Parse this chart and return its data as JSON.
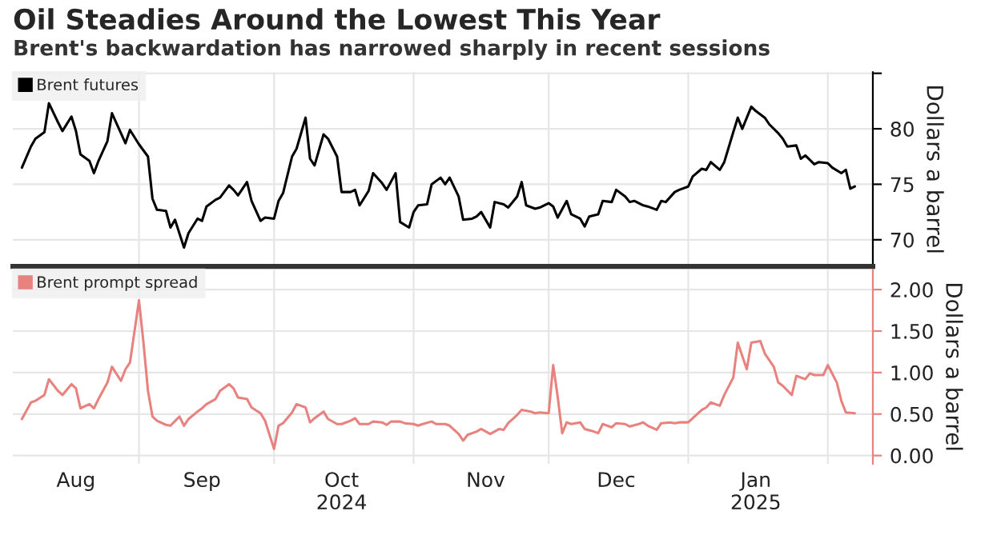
{
  "chart_data": [
    {
      "type": "line",
      "title": "Oil Steadies Around the Lowest This Year",
      "subtitle": "Brent's backwardation has narrowed sharply in recent sessions",
      "ylabel": "Dollars a barrel",
      "legend": "top left",
      "grid": true,
      "tick_labels": "y",
      "xlim": [
        "2024-08-04",
        "2025-02-11"
      ],
      "xticks": [
        {
          "value": "2024-09-01",
          "label": null
        },
        {
          "value": "2024-10-01",
          "label": null
        },
        {
          "value": "2024-11-01",
          "label": null
        },
        {
          "value": "2024-12-01",
          "label": null
        },
        {
          "value": "2025-01-01",
          "label": null
        },
        {
          "value": "2025-02-01",
          "label": null
        }
      ],
      "ylim": [
        67.6,
        85.1
      ],
      "yticks": [
        70,
        75,
        80,
        {
          "value": 85,
          "label": null
        }
      ],
      "series": [
        {
          "name": "Brent futures",
          "color": "#000000",
          "x": [
            "2024-08-06",
            "2024-08-08",
            "2024-08-09",
            "2024-08-11",
            "2024-08-12",
            "2024-08-14",
            "2024-08-15",
            "2024-08-17",
            "2024-08-18",
            "2024-08-19",
            "2024-08-21",
            "2024-08-22",
            "2024-08-23",
            "2024-08-25",
            "2024-08-26",
            "2024-08-28",
            "2024-08-29",
            "2024-08-30",
            "2024-09-01",
            "2024-09-03",
            "2024-09-04",
            "2024-09-05",
            "2024-09-07",
            "2024-09-08",
            "2024-09-09",
            "2024-09-11",
            "2024-09-12",
            "2024-09-14",
            "2024-09-15",
            "2024-09-16",
            "2024-09-18",
            "2024-09-19",
            "2024-09-21",
            "2024-09-22",
            "2024-09-23",
            "2024-09-25",
            "2024-09-26",
            "2024-09-28",
            "2024-09-29",
            "2024-10-01",
            "2024-10-02",
            "2024-10-03",
            "2024-10-05",
            "2024-10-06",
            "2024-10-08",
            "2024-10-09",
            "2024-10-10",
            "2024-10-12",
            "2024-10-13",
            "2024-10-15",
            "2024-10-16",
            "2024-10-18",
            "2024-10-19",
            "2024-10-20",
            "2024-10-22",
            "2024-10-23",
            "2024-10-25",
            "2024-10-26",
            "2024-10-28",
            "2024-10-29",
            "2024-10-31",
            "2024-11-01",
            "2024-11-02",
            "2024-11-04",
            "2024-11-05",
            "2024-11-07",
            "2024-11-08",
            "2024-11-09",
            "2024-11-11",
            "2024-11-12",
            "2024-11-14",
            "2024-11-15",
            "2024-11-16",
            "2024-11-18",
            "2024-11-19",
            "2024-11-21",
            "2024-11-22",
            "2024-11-24",
            "2024-11-25",
            "2024-11-26",
            "2024-11-28",
            "2024-11-29",
            "2024-12-01",
            "2024-12-02",
            "2024-12-03",
            "2024-12-05",
            "2024-12-06",
            "2024-12-08",
            "2024-12-09",
            "2024-12-10",
            "2024-12-12",
            "2024-12-13",
            "2024-12-15",
            "2024-12-16",
            "2024-12-18",
            "2024-12-19",
            "2024-12-20",
            "2024-12-22",
            "2024-12-23",
            "2024-12-25",
            "2024-12-26",
            "2024-12-27",
            "2024-12-29",
            "2024-12-30",
            "2025-01-01",
            "2025-01-02",
            "2025-01-04",
            "2025-01-05",
            "2025-01-06",
            "2025-01-08",
            "2025-01-09",
            "2025-01-11",
            "2025-01-12",
            "2025-01-13",
            "2025-01-15",
            "2025-01-16",
            "2025-01-18",
            "2025-01-19",
            "2025-01-21",
            "2025-01-22",
            "2025-01-23",
            "2025-01-25",
            "2025-01-26",
            "2025-01-27",
            "2025-01-29",
            "2025-01-30",
            "2025-02-01",
            "2025-02-02",
            "2025-02-04",
            "2025-02-05",
            "2025-02-06",
            "2025-02-07"
          ],
          "values": [
            76.5,
            78.4,
            79.1,
            79.7,
            82.3,
            80.6,
            79.8,
            81.1,
            79.8,
            77.7,
            77.1,
            76.0,
            77.1,
            78.9,
            81.4,
            79.6,
            78.7,
            79.9,
            78.6,
            77.5,
            73.7,
            72.7,
            72.6,
            71.1,
            71.8,
            69.3,
            70.6,
            71.9,
            71.7,
            73.0,
            73.6,
            73.8,
            74.9,
            74.5,
            74.0,
            75.2,
            73.5,
            71.7,
            72.0,
            71.9,
            73.5,
            74.2,
            77.5,
            78.2,
            81.0,
            77.3,
            76.7,
            79.5,
            79.1,
            77.5,
            74.3,
            74.3,
            74.5,
            73.1,
            74.4,
            76.0,
            75.1,
            74.5,
            76.0,
            71.6,
            71.1,
            72.5,
            73.1,
            73.2,
            75.0,
            75.6,
            75.0,
            75.6,
            73.9,
            71.8,
            71.9,
            72.1,
            72.5,
            71.1,
            73.4,
            73.2,
            72.9,
            73.9,
            75.2,
            73.1,
            72.8,
            72.9,
            73.3,
            73.0,
            72.0,
            73.5,
            72.3,
            71.9,
            71.2,
            72.1,
            72.3,
            73.5,
            73.4,
            74.5,
            73.9,
            73.4,
            73.5,
            73.1,
            73.0,
            72.7,
            73.5,
            73.4,
            74.3,
            74.5,
            74.8,
            75.7,
            76.4,
            76.3,
            77.0,
            76.3,
            77.0,
            79.7,
            81.0,
            80.0,
            82.0,
            81.6,
            81.0,
            80.4,
            79.6,
            79.1,
            78.4,
            78.5,
            77.3,
            77.6,
            76.8,
            77.0,
            76.9,
            76.5,
            76.0,
            76.3,
            74.6,
            74.8
          ]
        }
      ]
    },
    {
      "type": "line",
      "ylabel": "Dollars a barrel",
      "legend": "top left",
      "grid": true,
      "xlim": [
        "2024-08-04",
        "2025-02-11"
      ],
      "xticks": [
        {
          "value": "2024-09-01",
          "label": null
        },
        {
          "value": "2024-10-01",
          "label": null
        },
        {
          "value": "2024-11-01",
          "label": null
        },
        {
          "value": "2024-12-01",
          "label": null
        },
        {
          "value": "2025-01-01",
          "label": null
        },
        {
          "value": "2025-02-01",
          "label": null
        },
        {
          "value": "2024-08-18",
          "label": "Aug"
        },
        {
          "value": "2024-09-15",
          "label": "Sep"
        },
        {
          "value": "2024-10-16",
          "label": "Oct\n2024"
        },
        {
          "value": "2024-11-17",
          "label": "Nov"
        },
        {
          "value": "2024-12-16",
          "label": "Dec"
        },
        {
          "value": "2025-01-16",
          "label": "Jan\n2025"
        }
      ],
      "ylim": [
        -0.1,
        2.24
      ],
      "yticks": [
        {
          "value": 0,
          "label": "0.00"
        },
        {
          "value": 0.5,
          "label": "0.50"
        },
        {
          "value": 1,
          "label": "1.00"
        },
        {
          "value": 1.5,
          "label": "1.50"
        },
        {
          "value": 2,
          "label": "2.00"
        }
      ],
      "series": [
        {
          "name": "Brent prompt spread",
          "color": "#e8827f",
          "x": [
            "2024-08-06",
            "2024-08-08",
            "2024-08-09",
            "2024-08-11",
            "2024-08-12",
            "2024-08-14",
            "2024-08-15",
            "2024-08-17",
            "2024-08-18",
            "2024-08-19",
            "2024-08-21",
            "2024-08-22",
            "2024-08-23",
            "2024-08-25",
            "2024-08-26",
            "2024-08-28",
            "2024-08-29",
            "2024-08-30",
            "2024-09-01",
            "2024-09-02",
            "2024-09-03",
            "2024-09-04",
            "2024-09-05",
            "2024-09-07",
            "2024-09-08",
            "2024-09-10",
            "2024-09-11",
            "2024-09-12",
            "2024-09-14",
            "2024-09-15",
            "2024-09-16",
            "2024-09-18",
            "2024-09-19",
            "2024-09-21",
            "2024-09-22",
            "2024-09-23",
            "2024-09-25",
            "2024-09-26",
            "2024-09-28",
            "2024-09-29",
            "2024-10-01",
            "2024-10-02",
            "2024-10-03",
            "2024-10-05",
            "2024-10-06",
            "2024-10-08",
            "2024-10-09",
            "2024-10-10",
            "2024-10-12",
            "2024-10-13",
            "2024-10-15",
            "2024-10-16",
            "2024-10-18",
            "2024-10-19",
            "2024-10-20",
            "2024-10-22",
            "2024-10-23",
            "2024-10-25",
            "2024-10-26",
            "2024-10-27",
            "2024-10-29",
            "2024-10-30",
            "2024-11-01",
            "2024-11-02",
            "2024-11-03",
            "2024-11-05",
            "2024-11-06",
            "2024-11-08",
            "2024-11-09",
            "2024-11-11",
            "2024-11-12",
            "2024-11-13",
            "2024-11-15",
            "2024-11-16",
            "2024-11-18",
            "2024-11-19",
            "2024-11-20",
            "2024-11-21",
            "2024-11-22",
            "2024-11-24",
            "2024-11-25",
            "2024-11-27",
            "2024-11-28",
            "2024-11-29",
            "2024-12-01",
            "2024-12-02",
            "2024-12-03",
            "2024-12-04",
            "2024-12-05",
            "2024-12-06",
            "2024-12-08",
            "2024-12-09",
            "2024-12-11",
            "2024-12-12",
            "2024-12-13",
            "2024-12-15",
            "2024-12-16",
            "2024-12-18",
            "2024-12-19",
            "2024-12-21",
            "2024-12-22",
            "2024-12-23",
            "2024-12-25",
            "2024-12-26",
            "2024-12-28",
            "2024-12-29",
            "2024-12-30",
            "2025-01-01",
            "2025-01-02",
            "2025-01-04",
            "2025-01-05",
            "2025-01-06",
            "2025-01-08",
            "2025-01-09",
            "2025-01-11",
            "2025-01-12",
            "2025-01-14",
            "2025-01-15",
            "2025-01-17",
            "2025-01-18",
            "2025-01-20",
            "2025-01-21",
            "2025-01-22",
            "2025-01-24",
            "2025-01-25",
            "2025-01-27",
            "2025-01-28",
            "2025-01-29",
            "2025-01-31",
            "2025-02-01",
            "2025-02-03",
            "2025-02-04",
            "2025-02-05",
            "2025-02-07"
          ],
          "values": [
            0.44,
            0.64,
            0.66,
            0.73,
            0.92,
            0.78,
            0.73,
            0.86,
            0.81,
            0.57,
            0.62,
            0.57,
            0.68,
            0.88,
            1.07,
            0.9,
            1.04,
            1.12,
            1.87,
            1.36,
            0.78,
            0.47,
            0.42,
            0.37,
            0.36,
            0.47,
            0.36,
            0.44,
            0.53,
            0.57,
            0.62,
            0.68,
            0.78,
            0.86,
            0.81,
            0.7,
            0.68,
            0.58,
            0.51,
            0.42,
            0.08,
            0.36,
            0.39,
            0.52,
            0.62,
            0.58,
            0.4,
            0.45,
            0.53,
            0.44,
            0.38,
            0.38,
            0.42,
            0.45,
            0.38,
            0.38,
            0.41,
            0.4,
            0.37,
            0.41,
            0.41,
            0.39,
            0.38,
            0.36,
            0.38,
            0.41,
            0.38,
            0.38,
            0.36,
            0.26,
            0.18,
            0.25,
            0.29,
            0.32,
            0.26,
            0.29,
            0.32,
            0.31,
            0.39,
            0.49,
            0.55,
            0.53,
            0.51,
            0.52,
            0.51,
            1.09,
            0.71,
            0.27,
            0.4,
            0.38,
            0.4,
            0.32,
            0.29,
            0.27,
            0.38,
            0.34,
            0.39,
            0.38,
            0.35,
            0.38,
            0.4,
            0.36,
            0.31,
            0.39,
            0.4,
            0.39,
            0.4,
            0.4,
            0.45,
            0.55,
            0.58,
            0.64,
            0.6,
            0.73,
            0.94,
            1.36,
            1.04,
            1.36,
            1.38,
            1.23,
            1.07,
            0.88,
            0.84,
            0.73,
            0.96,
            0.92,
            0.99,
            0.97,
            0.97,
            1.09,
            0.88,
            0.66,
            0.52,
            0.51
          ]
        }
      ]
    }
  ]
}
